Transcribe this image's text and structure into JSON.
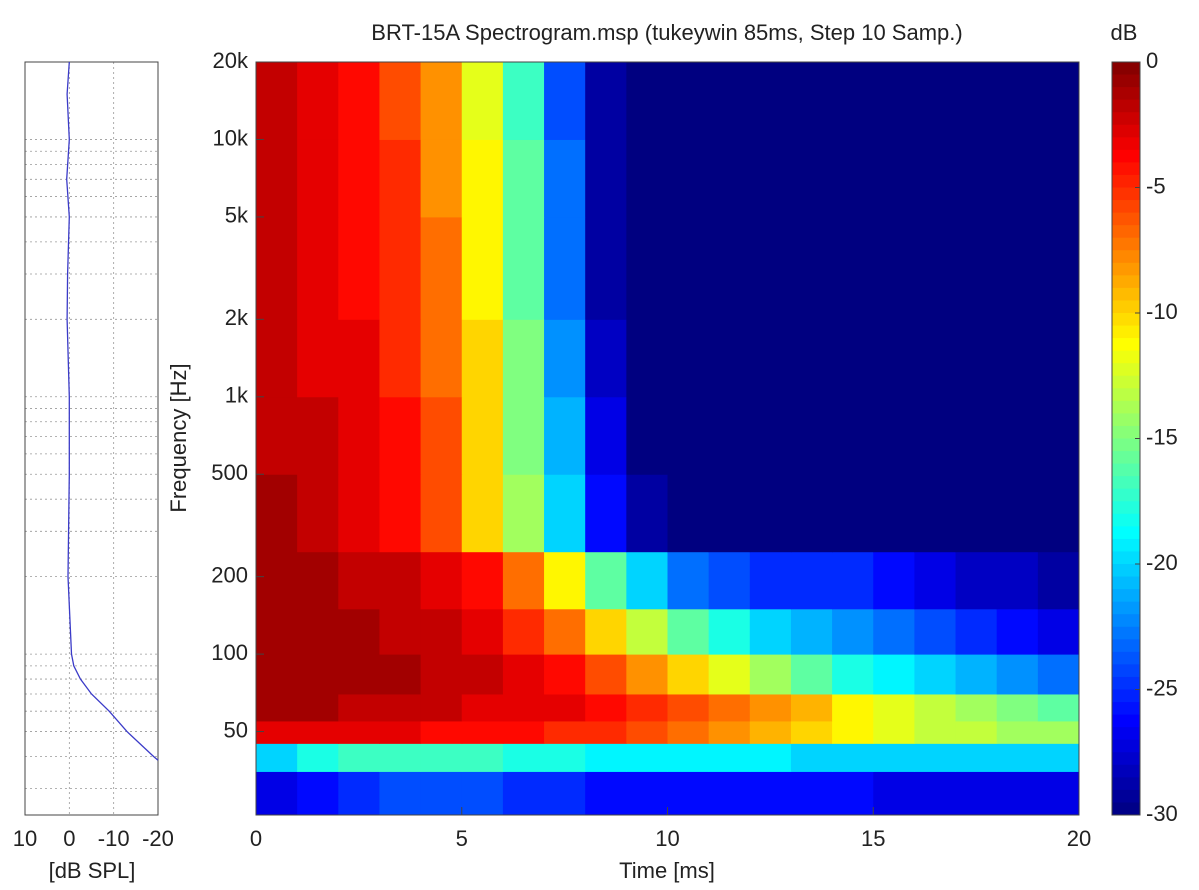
{
  "chart_data": [
    {
      "type": "line",
      "xlabel": "[dB SPL]",
      "xlim": [
        10,
        -20
      ],
      "xticks": [
        10,
        0,
        -10,
        -20
      ],
      "ylim": [
        23.7,
        20000
      ],
      "log_y": true,
      "grid": true,
      "yticks": [
        30,
        40,
        50,
        60,
        70,
        80,
        90,
        100,
        200,
        300,
        400,
        500,
        600,
        700,
        800,
        900,
        1000,
        2000,
        3000,
        4000,
        5000,
        6000,
        7000,
        8000,
        9000,
        10000,
        20000
      ],
      "series": [
        {
          "color": "#3b3bc8",
          "freqs": [
            20000,
            15000,
            10000,
            7000,
            5000,
            3000,
            2000,
            1000,
            500,
            200,
            100,
            90,
            80,
            70,
            60,
            50,
            40,
            38.7
          ],
          "values": [
            0,
            0.5,
            0,
            0.6,
            0,
            0.4,
            0.5,
            0,
            0,
            0.3,
            -0.5,
            -1,
            -2.5,
            -5,
            -9,
            -13,
            -19,
            -20
          ]
        }
      ]
    },
    {
      "type": "heatmap",
      "title": "BRT-15A Spectrogram.msp (tukeywin 85ms, Step 10 Samp.)",
      "xlabel": "Time [ms]",
      "ylabel": "Frequency [Hz]",
      "xlim": [
        0,
        20
      ],
      "xticks": [
        0,
        5,
        10,
        15,
        20
      ],
      "ylim": [
        23.7,
        20000
      ],
      "log_y": true,
      "yticks": [
        {
          "value": 20000,
          "label": "20k"
        },
        {
          "value": 10000,
          "label": "10k"
        },
        {
          "value": 5000,
          "label": "5k"
        },
        {
          "value": 2000,
          "label": "2k"
        },
        {
          "value": 1000,
          "label": "1k"
        },
        500,
        200,
        100,
        50
      ],
      "x_edges": [
        0,
        1,
        2,
        3,
        4,
        5,
        6,
        7,
        8,
        9,
        10,
        11,
        12,
        13,
        14,
        15,
        16,
        17,
        18,
        19,
        20
      ],
      "y_edges": [
        23.7,
        35,
        45,
        55,
        70,
        100,
        150,
        250,
        500,
        1000,
        2000,
        5000,
        10000,
        20000
      ],
      "z": [
        [
          -27,
          -26,
          -25,
          -24,
          -24,
          -24,
          -25,
          -25,
          -26,
          -26,
          -26,
          -26,
          -26,
          -26,
          -26,
          -27,
          -27,
          -27,
          -27,
          -27
        ],
        [
          -20,
          -18,
          -17,
          -17,
          -17,
          -17,
          -18,
          -18,
          -19,
          -19,
          -19,
          -19,
          -19,
          -20,
          -20,
          -20,
          -20,
          -20,
          -20,
          -20
        ],
        [
          -3,
          -3,
          -3,
          -3,
          -4,
          -4,
          -4,
          -5,
          -5,
          -6,
          -7,
          -8,
          -9,
          -10,
          -11,
          -12,
          -13,
          -13,
          -14,
          -14
        ],
        [
          -1,
          -1,
          -2,
          -2,
          -2,
          -3,
          -3,
          -3,
          -4,
          -5,
          -6,
          -7,
          -8,
          -9,
          -11,
          -12,
          -13,
          -14,
          -15,
          -16
        ],
        [
          -1,
          -1,
          -1,
          -1,
          -2,
          -2,
          -3,
          -4,
          -6,
          -8,
          -10,
          -12,
          -14,
          -16,
          -18,
          -19,
          -20,
          -21,
          -22,
          -23
        ],
        [
          -1,
          -1,
          -1,
          -2,
          -2,
          -3,
          -5,
          -7,
          -10,
          -13,
          -16,
          -18,
          -20,
          -21,
          -22,
          -23,
          -24,
          -25,
          -26,
          -27
        ],
        [
          -1,
          -1,
          -2,
          -2,
          -3,
          -4,
          -7,
          -11,
          -16,
          -20,
          -23,
          -24,
          -25,
          -25,
          -25,
          -26,
          -27,
          -28,
          -28,
          -29
        ],
        [
          -1,
          -2,
          -3,
          -4,
          -6,
          -10,
          -14,
          -20,
          -26,
          -29,
          -30,
          -30,
          -30,
          -30,
          -30,
          -30,
          -30,
          -30,
          -30,
          -30
        ],
        [
          -2,
          -2,
          -3,
          -4,
          -6,
          -10,
          -15,
          -21,
          -27,
          -30,
          -30,
          -30,
          -30,
          -30,
          -30,
          -30,
          -30,
          -30,
          -30,
          -30
        ],
        [
          -2,
          -3,
          -3,
          -5,
          -7,
          -10,
          -15,
          -22,
          -28,
          -30,
          -30,
          -30,
          -30,
          -30,
          -30,
          -30,
          -30,
          -30,
          -30,
          -30
        ],
        [
          -2,
          -3,
          -4,
          -5,
          -7,
          -11,
          -16,
          -23,
          -29,
          -30,
          -30,
          -30,
          -30,
          -30,
          -30,
          -30,
          -30,
          -30,
          -30,
          -30
        ],
        [
          -2,
          -3,
          -4,
          -5,
          -8,
          -11,
          -16,
          -23,
          -29,
          -30,
          -30,
          -30,
          -30,
          -30,
          -30,
          -30,
          -30,
          -30,
          -30,
          -30
        ],
        [
          -2,
          -3,
          -4,
          -6,
          -8,
          -12,
          -17,
          -24,
          -29,
          -30,
          -30,
          -30,
          -30,
          -30,
          -30,
          -30,
          -30,
          -30,
          -30,
          -30
        ]
      ],
      "zlim": [
        -30,
        0
      ],
      "zlabel": "dB",
      "zticks": [
        0,
        -5,
        -10,
        -15,
        -20,
        -25,
        -30
      ],
      "colormap": "jet"
    }
  ]
}
